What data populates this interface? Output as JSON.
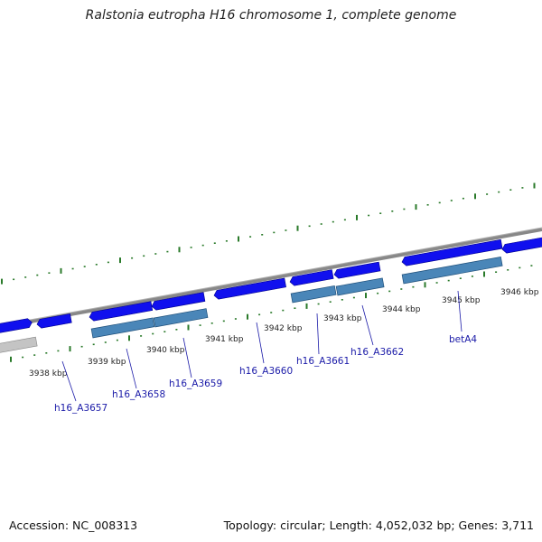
{
  "title": "Ralstonia eutropha H16 chromosome 1, complete genome",
  "footer": {
    "accession": "Accession: NC_008313",
    "topology": "Topology: circular; Length: 4,052,032 bp; Genes: 3,711"
  },
  "colors": {
    "forward_gene": "#1010ee",
    "reverse_gene": "#4a86b8",
    "other_gene": "#c4c4c4",
    "backbone": "#888888",
    "tick": "#2a7a2a",
    "label_line": "#1a1aa8"
  },
  "scale_labels": [
    "3938 kbp",
    "3939 kbp",
    "3940 kbp",
    "3941 kbp",
    "3942 kbp",
    "3943 kbp",
    "3944 kbp",
    "3945 kbp",
    "3946 kbp"
  ],
  "gene_labels": [
    "h16_A3657",
    "h16_A3658",
    "h16_A3659",
    "h16_A3660",
    "h16_A3661",
    "h16_A3662",
    "betA4"
  ]
}
